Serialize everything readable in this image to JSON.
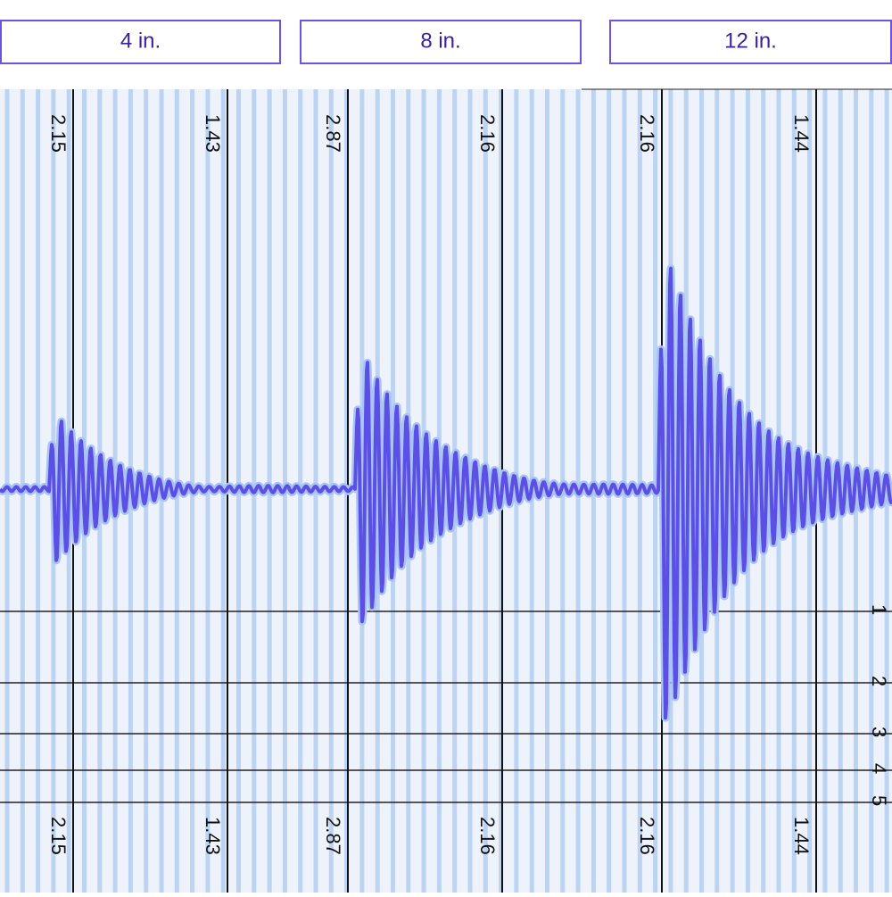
{
  "tabs": [
    "4 in.",
    "8 in.",
    "12 in."
  ],
  "panels": [
    {
      "top_labels": [
        "2.15",
        "1.43"
      ],
      "bottom_labels": [
        "2.15",
        "1.43"
      ]
    },
    {
      "top_labels": [
        "2.87",
        "2.16"
      ],
      "bottom_labels": [
        "2.87",
        "2.16"
      ]
    },
    {
      "top_labels": [
        "2.16",
        "1.44"
      ],
      "bottom_labels": [
        "2.16",
        "1.44"
      ]
    }
  ],
  "scale_labels": [
    "1",
    "2",
    "3",
    "4",
    "5"
  ]
}
